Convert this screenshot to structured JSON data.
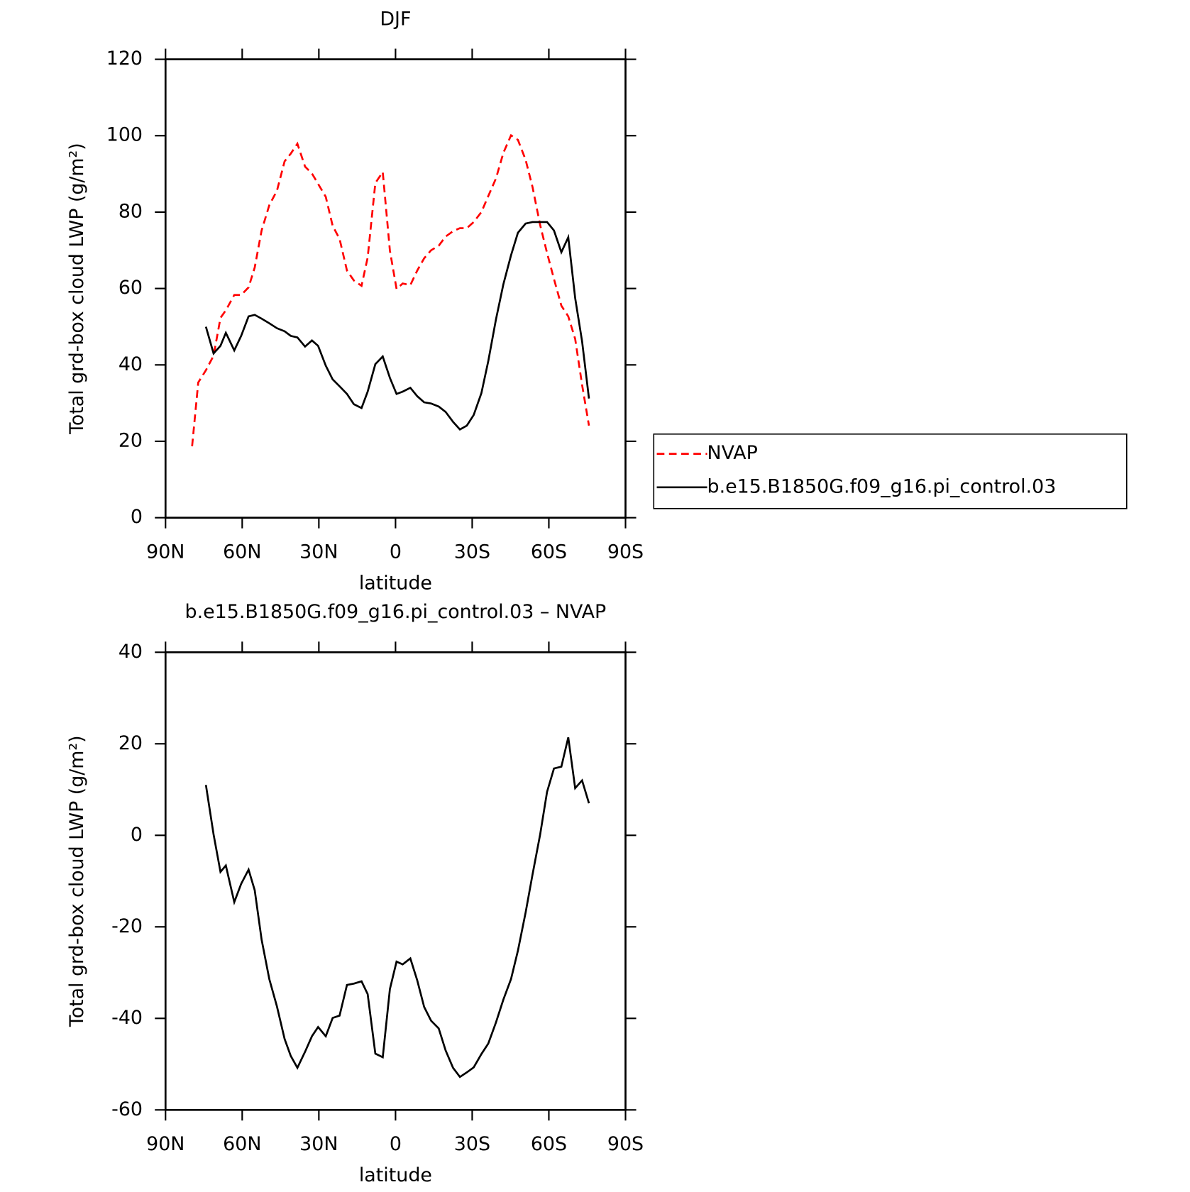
{
  "chart_data": [
    {
      "type": "line",
      "title": "DJF",
      "x_label": "latitude",
      "y_label": "Total grd-box cloud LWP (g/m²)",
      "xlim": [
        90,
        -90
      ],
      "xticks": [
        {
          "value": 90,
          "label": "90N"
        },
        {
          "value": 60,
          "label": "60N"
        },
        {
          "value": 30,
          "label": "30N"
        },
        0,
        {
          "value": -30,
          "label": "30S"
        },
        {
          "value": -60,
          "label": "60S"
        },
        {
          "value": -90,
          "label": "90S"
        }
      ],
      "ylim": [
        0,
        120
      ],
      "yticks": [
        0,
        20,
        40,
        60,
        80,
        100,
        120
      ],
      "legend": "right",
      "x": [
        79.6,
        77.2,
        74.2,
        71.2,
        68.5,
        66.4,
        63.1,
        60.4,
        57.5,
        55.1,
        52.4,
        49.4,
        46.4,
        43.4,
        41.0,
        38.4,
        35.4,
        32.7,
        30.3,
        27.3,
        24.6,
        21.9,
        19.0,
        16.3,
        13.3,
        10.9,
        7.9,
        5.0,
        2.2,
        -0.4,
        -2.8,
        -5.8,
        -8.5,
        -11.2,
        -13.9,
        -16.9,
        -19.6,
        -22.5,
        -25.2,
        -27.9,
        -30.6,
        -33.6,
        -36.3,
        -39.3,
        -42.2,
        -45.2,
        -47.9,
        -50.9,
        -53.6,
        -56.6,
        -59.3,
        -62.0,
        -64.9,
        -67.6,
        -70.3,
        -73.0,
        -75.7
      ],
      "series": [
        {
          "name": "NVAP",
          "color": "#ff0000",
          "style": "dashed",
          "values": [
            18.7,
            35.4,
            38.6,
            42.4,
            52.3,
            54.3,
            58.3,
            58.3,
            60.3,
            65.5,
            75.2,
            81.8,
            85.6,
            93.3,
            95.3,
            97.9,
            91.9,
            90.1,
            87.4,
            84.0,
            76.4,
            73.0,
            64.7,
            62.1,
            60.7,
            68.1,
            87.6,
            90.5,
            69.9,
            59.9,
            61.3,
            60.9,
            64.7,
            67.9,
            70.0,
            71.2,
            73.6,
            75.0,
            75.8,
            75.8,
            77.4,
            80.0,
            84.2,
            88.8,
            95.5,
            100.1,
            98.9,
            93.7,
            86.6,
            76.6,
            69.3,
            62.5,
            55.5,
            52.7,
            46.8,
            34.8,
            24.1
          ]
        },
        {
          "name": "b.e15.B1850G.f09_g16.pi_control.03",
          "color": "#000000",
          "style": "solid",
          "values": [
            null,
            null,
            50.0,
            43.0,
            45.0,
            48.4,
            43.8,
            47.6,
            52.7,
            53.1,
            52.1,
            50.9,
            49.6,
            48.8,
            47.6,
            47.2,
            44.8,
            46.4,
            45.0,
            39.8,
            36.2,
            34.4,
            32.4,
            29.7,
            28.7,
            33.0,
            40.2,
            42.2,
            36.6,
            32.4,
            33.0,
            34.0,
            31.8,
            30.2,
            29.9,
            29.1,
            27.7,
            25.1,
            23.1,
            24.1,
            26.9,
            32.6,
            41.0,
            51.9,
            61.1,
            68.7,
            74.6,
            77.0,
            77.4,
            77.4,
            77.4,
            75.2,
            69.5,
            73.4,
            57.5,
            46.2,
            31.2
          ]
        }
      ]
    },
    {
      "type": "line",
      "title": "b.e15.B1850G.f09_g16.pi_control.03 – NVAP",
      "x_label": "latitude",
      "y_label": "Total grd-box cloud LWP (g/m²)",
      "xlim": [
        90,
        -90
      ],
      "xticks": [
        {
          "value": 90,
          "label": "90N"
        },
        {
          "value": 60,
          "label": "60N"
        },
        {
          "value": 30,
          "label": "30N"
        },
        0,
        {
          "value": -30,
          "label": "30S"
        },
        {
          "value": -60,
          "label": "60S"
        },
        {
          "value": -90,
          "label": "90S"
        }
      ],
      "ylim": [
        -60,
        40
      ],
      "yticks": [
        -60,
        -40,
        -20,
        0,
        20,
        40
      ],
      "x": [
        79.6,
        77.2,
        74.2,
        71.2,
        68.5,
        66.4,
        63.1,
        60.4,
        57.5,
        55.1,
        52.4,
        49.4,
        46.4,
        43.4,
        41.0,
        38.4,
        35.4,
        32.7,
        30.3,
        27.3,
        24.6,
        21.9,
        19.0,
        16.3,
        13.3,
        10.9,
        7.9,
        5.0,
        2.2,
        -0.4,
        -2.8,
        -5.8,
        -8.5,
        -11.2,
        -13.9,
        -16.9,
        -19.6,
        -22.5,
        -25.2,
        -27.9,
        -30.6,
        -33.6,
        -36.3,
        -39.3,
        -42.2,
        -45.2,
        -47.9,
        -50.9,
        -53.6,
        -56.6,
        -59.3,
        -62.0,
        -64.9,
        -67.6,
        -70.3,
        -73.0,
        -75.7
      ],
      "series": [
        {
          "color": "#000000",
          "style": "solid",
          "values": [
            null,
            null,
            11.0,
            0.2,
            -8.0,
            -6.6,
            -14.6,
            -10.6,
            -7.5,
            -12.0,
            -22.8,
            -31.4,
            -37.4,
            -44.5,
            -48.2,
            -50.8,
            -47.3,
            -43.9,
            -41.9,
            -43.9,
            -39.9,
            -39.4,
            -32.7,
            -32.4,
            -31.9,
            -34.7,
            -47.7,
            -48.5,
            -33.6,
            -27.6,
            -28.2,
            -26.9,
            -31.7,
            -37.5,
            -40.5,
            -42.2,
            -47.0,
            -50.8,
            -52.8,
            -51.8,
            -50.7,
            -47.8,
            -45.5,
            -40.9,
            -35.9,
            -31.4,
            -25.2,
            -16.9,
            -8.6,
            0.2,
            9.5,
            14.6,
            15.0,
            21.4,
            10.3,
            12.0,
            7.0
          ]
        }
      ]
    }
  ]
}
